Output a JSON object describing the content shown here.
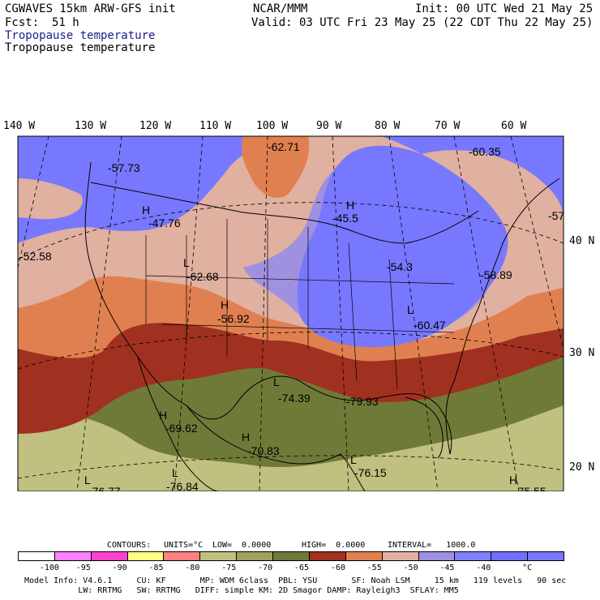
{
  "header": {
    "model": "CGWAVES 15km ARW-GFS init",
    "org": "NCAR/MMM",
    "init": "Init: 00 UTC Wed 21 May 25",
    "fcst_label": "Fcst:",
    "fcst_value": "51 h",
    "valid": "Valid: 03 UTC Fri 23 May 25 (22 CDT Thu 22 May 25)",
    "field_title_1": "Tropopause temperature",
    "field_title_2": "Tropopause temperature"
  },
  "lon_labels": [
    "140 W",
    "130 W",
    "120 W",
    "110 W",
    "100 W",
    "90 W",
    "80 W",
    "70 W",
    "60 W"
  ],
  "lat_labels": [
    "40 N",
    "30 N",
    "20 N"
  ],
  "map_values": [
    {
      "sym": "",
      "val": "-62.71"
    },
    {
      "sym": "",
      "val": "-60.35"
    },
    {
      "sym": "",
      "val": "-57.73"
    },
    {
      "sym": "H",
      "val": "-47.76"
    },
    {
      "sym": "H",
      "val": "-45.5"
    },
    {
      "sym": "",
      "val": "-57"
    },
    {
      "sym": "",
      "val": "-52.58"
    },
    {
      "sym": "L",
      "val": "-62.68"
    },
    {
      "sym": "",
      "val": "-54.3"
    },
    {
      "sym": "",
      "val": "-58.89"
    },
    {
      "sym": "H",
      "val": "-56.92"
    },
    {
      "sym": "L",
      "val": "-60.47"
    },
    {
      "sym": "L",
      "val": "-74.39"
    },
    {
      "sym": "",
      "val": "-79.93"
    },
    {
      "sym": "H",
      "val": "-69.62"
    },
    {
      "sym": "H",
      "val": "-70.83"
    },
    {
      "sym": "L",
      "val": "-76.15"
    },
    {
      "sym": "L",
      "val": "-76.84"
    },
    {
      "sym": "L",
      "val": "-76.77"
    },
    {
      "sym": "H",
      "val": "-75.55"
    }
  ],
  "contour_info": {
    "contours": "CONTOURS:",
    "units": "UNITS=°C",
    "low": "LOW=  0.0000",
    "high": "HIGH=  0.0000",
    "interval": "INTERVAL=   1000.0"
  },
  "colorbar": {
    "colors": [
      "#ffffff",
      "#ff80ff",
      "#ff40d0",
      "#ffff80",
      "#ff8080",
      "#c0c080",
      "#a0a060",
      "#707a38",
      "#a03020",
      "#e08050",
      "#e0b0a0",
      "#a090e0",
      "#8080ff",
      "#7070ff",
      "#7878ff"
    ],
    "labels": [
      "-100",
      "-95",
      "-90",
      "-85",
      "-80",
      "-75",
      "-70",
      "-65",
      "-60",
      "-55",
      "-50",
      "-45",
      "-40",
      "°C"
    ]
  },
  "footer": {
    "line1": "Model Info: V4.6.1     CU: KF       MP: WDM 6class  PBL: YSU       SF: Noah LSM     15 km   119 levels   90 sec",
    "line2": "           LW: RRTMG   SW: RRTMG   DIFF: simple KM: 2D Smagor DAMP: Rayleigh3  SFLAY: MM5"
  },
  "colors": {
    "cold_purple": "#7878ff",
    "pale_pink": "#e0b0a0",
    "salmon": "#e08050",
    "dark_red": "#a03020",
    "olive": "#707a38",
    "khaki": "#c0c080"
  }
}
